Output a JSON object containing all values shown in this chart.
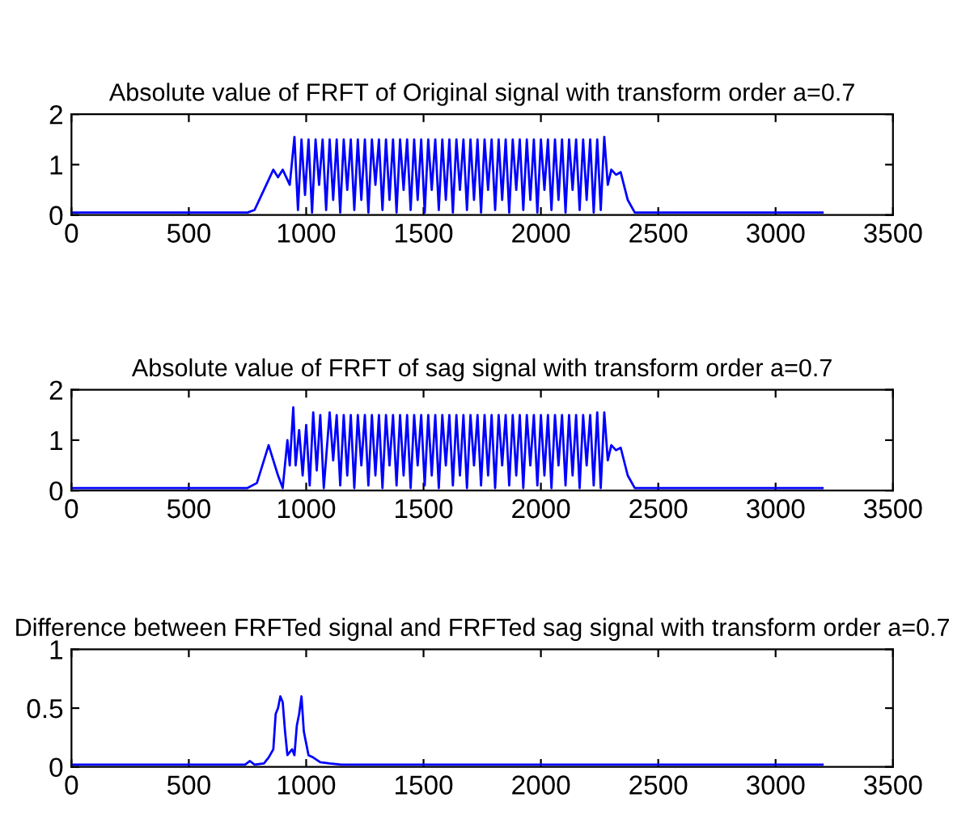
{
  "chart_data": [
    {
      "type": "line",
      "title": "Absolute value of FRFT of Original signal with transform order a=0.7",
      "xlim": [
        0,
        3500
      ],
      "xticks": [
        0,
        500,
        1000,
        1500,
        2000,
        2500,
        3000,
        3500
      ],
      "ylim": [
        0,
        2
      ],
      "yticks": [
        0,
        1,
        2
      ],
      "grid": false,
      "series": [
        {
          "color": "#0000ff",
          "x": [
            0,
            750,
            780,
            820,
            860,
            880,
            900,
            930,
            950,
            965,
            980,
            995,
            1010,
            1025,
            1040,
            1055,
            1070,
            1085,
            1100,
            1115,
            1130,
            1145,
            1160,
            1175,
            1190,
            1205,
            1220,
            1235,
            1250,
            1265,
            1280,
            1295,
            1310,
            1325,
            1340,
            1355,
            1370,
            1385,
            1400,
            1415,
            1430,
            1445,
            1460,
            1475,
            1490,
            1505,
            1520,
            1535,
            1550,
            1565,
            1580,
            1595,
            1610,
            1625,
            1640,
            1655,
            1670,
            1685,
            1700,
            1715,
            1730,
            1745,
            1760,
            1775,
            1790,
            1805,
            1820,
            1835,
            1850,
            1865,
            1880,
            1895,
            1910,
            1925,
            1940,
            1955,
            1970,
            1985,
            2000,
            2015,
            2030,
            2045,
            2060,
            2075,
            2090,
            2105,
            2120,
            2135,
            2150,
            2165,
            2180,
            2195,
            2210,
            2225,
            2240,
            2255,
            2270,
            2285,
            2300,
            2320,
            2340,
            2370,
            2400,
            3200
          ],
          "values": [
            0.05,
            0.05,
            0.1,
            0.5,
            0.9,
            0.75,
            0.9,
            0.6,
            1.55,
            0.1,
            1.5,
            0.4,
            1.5,
            0.05,
            1.5,
            0.6,
            1.5,
            0.1,
            1.5,
            0.3,
            1.5,
            0.05,
            1.5,
            0.5,
            1.5,
            0.1,
            1.5,
            0.3,
            1.5,
            0.05,
            1.5,
            0.6,
            1.5,
            0.1,
            1.5,
            0.3,
            1.5,
            0.05,
            1.5,
            0.5,
            1.5,
            0.1,
            1.5,
            0.3,
            1.5,
            0.05,
            1.5,
            0.5,
            1.5,
            0.1,
            1.5,
            0.3,
            1.5,
            0.05,
            1.5,
            0.5,
            1.5,
            0.1,
            1.5,
            0.3,
            1.5,
            0.05,
            1.5,
            0.5,
            1.5,
            0.1,
            1.5,
            0.3,
            1.5,
            0.05,
            1.5,
            0.5,
            1.5,
            0.1,
            1.5,
            0.3,
            1.5,
            0.05,
            1.5,
            0.5,
            1.5,
            0.1,
            1.5,
            0.3,
            1.5,
            0.05,
            1.5,
            0.5,
            1.5,
            0.1,
            1.5,
            0.3,
            1.5,
            0.05,
            1.5,
            0.1,
            1.55,
            0.6,
            0.9,
            0.8,
            0.85,
            0.3,
            0.05,
            0.05
          ]
        }
      ]
    },
    {
      "type": "line",
      "title": "Absolute value of FRFT of sag signal with transform order a=0.7",
      "xlim": [
        0,
        3500
      ],
      "xticks": [
        0,
        500,
        1000,
        1500,
        2000,
        2500,
        3000,
        3500
      ],
      "ylim": [
        0,
        2
      ],
      "yticks": [
        0,
        1,
        2
      ],
      "grid": false,
      "series": [
        {
          "color": "#0000ff",
          "x": [
            0,
            750,
            790,
            820,
            840,
            860,
            880,
            900,
            920,
            930,
            945,
            955,
            970,
            985,
            1000,
            1015,
            1030,
            1045,
            1060,
            1075,
            1100,
            1115,
            1130,
            1145,
            1160,
            1175,
            1190,
            1205,
            1220,
            1235,
            1250,
            1265,
            1280,
            1295,
            1310,
            1325,
            1340,
            1355,
            1370,
            1385,
            1400,
            1415,
            1430,
            1445,
            1460,
            1475,
            1490,
            1505,
            1520,
            1535,
            1550,
            1565,
            1580,
            1595,
            1610,
            1625,
            1640,
            1655,
            1670,
            1685,
            1700,
            1715,
            1730,
            1745,
            1760,
            1775,
            1790,
            1805,
            1820,
            1835,
            1850,
            1865,
            1880,
            1895,
            1910,
            1925,
            1940,
            1955,
            1970,
            1985,
            2000,
            2015,
            2030,
            2045,
            2060,
            2075,
            2090,
            2105,
            2120,
            2135,
            2150,
            2165,
            2180,
            2195,
            2210,
            2225,
            2240,
            2255,
            2270,
            2285,
            2300,
            2320,
            2340,
            2370,
            2400,
            3200
          ],
          "values": [
            0.05,
            0.05,
            0.15,
            0.6,
            0.9,
            0.6,
            0.3,
            0.05,
            1.0,
            0.5,
            1.65,
            0.5,
            1.2,
            0.3,
            1.3,
            0.1,
            1.55,
            0.4,
            1.5,
            0.05,
            1.55,
            0.6,
            1.5,
            0.1,
            1.5,
            0.3,
            1.5,
            0.05,
            1.5,
            0.5,
            1.5,
            0.1,
            1.5,
            0.3,
            1.5,
            0.05,
            1.5,
            0.5,
            1.5,
            0.1,
            1.5,
            0.3,
            1.5,
            0.05,
            1.5,
            0.5,
            1.5,
            0.1,
            1.5,
            0.3,
            1.5,
            0.05,
            1.5,
            0.5,
            1.5,
            0.1,
            1.5,
            0.3,
            1.5,
            0.05,
            1.5,
            0.5,
            1.5,
            0.1,
            1.5,
            0.3,
            1.5,
            0.05,
            1.5,
            0.5,
            1.5,
            0.1,
            1.5,
            0.3,
            1.5,
            0.05,
            1.5,
            0.5,
            1.5,
            0.1,
            1.5,
            0.3,
            1.5,
            0.05,
            1.5,
            0.5,
            1.5,
            0.1,
            1.5,
            0.3,
            1.5,
            0.05,
            1.5,
            0.5,
            1.5,
            0.1,
            1.55,
            0.05,
            1.55,
            0.6,
            0.9,
            0.8,
            0.85,
            0.3,
            0.05,
            0.05
          ]
        }
      ]
    },
    {
      "type": "line",
      "title": "Difference between FRFTed signal and FRFTed sag signal with transform order a=0.7",
      "xlim": [
        0,
        3500
      ],
      "xticks": [
        0,
        500,
        1000,
        1500,
        2000,
        2500,
        3000,
        3500
      ],
      "ylim": [
        0,
        1
      ],
      "yticks": [
        0,
        0.5,
        1
      ],
      "grid": false,
      "series": [
        {
          "color": "#0000ff",
          "x": [
            0,
            740,
            760,
            780,
            820,
            840,
            860,
            870,
            880,
            890,
            900,
            910,
            920,
            940,
            950,
            960,
            970,
            980,
            990,
            1000,
            1010,
            1030,
            1060,
            1100,
            1150,
            3200
          ],
          "values": [
            0.02,
            0.02,
            0.05,
            0.02,
            0.03,
            0.08,
            0.15,
            0.45,
            0.5,
            0.6,
            0.55,
            0.3,
            0.1,
            0.15,
            0.1,
            0.35,
            0.45,
            0.6,
            0.3,
            0.2,
            0.1,
            0.08,
            0.04,
            0.03,
            0.02,
            0.02
          ]
        }
      ]
    }
  ]
}
